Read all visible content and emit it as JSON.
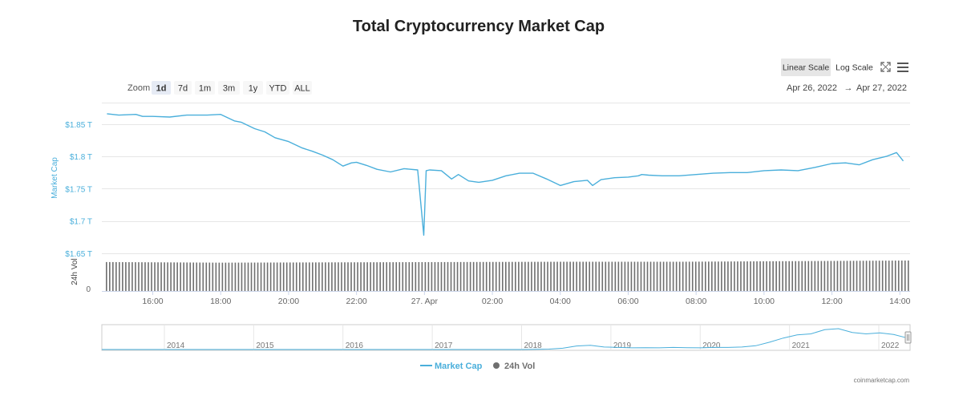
{
  "colors": {
    "accent": "#4aafdb",
    "volume": "#6f6f6f",
    "button_active_bg": "#e6ebf5",
    "scale_active_bg": "#e6e6e6",
    "grid": "#e6e6e6",
    "axis_text": "#666666",
    "price_axis_text": "#4aafdb"
  },
  "chart_data": {
    "type": "line",
    "title": "Total Cryptocurrency Market Cap",
    "zoom_label": "Zoom",
    "zoom_buttons": [
      {
        "label": "1d",
        "active": true
      },
      {
        "label": "7d",
        "active": false
      },
      {
        "label": "1m",
        "active": false
      },
      {
        "label": "3m",
        "active": false
      },
      {
        "label": "1y",
        "active": false
      },
      {
        "label": "YTD",
        "active": false
      },
      {
        "label": "ALL",
        "active": false
      }
    ],
    "scale_buttons": [
      {
        "label": "Linear Scale",
        "active": true
      },
      {
        "label": "Log Scale",
        "active": false
      }
    ],
    "icons": [
      "fullscreen-icon",
      "menu-icon"
    ],
    "date_range": {
      "from": "Apr 26, 2022",
      "arrow": "→",
      "to": "Apr 27, 2022"
    },
    "ylabel": "Market Cap",
    "y_ticks": [
      {
        "value": 1.85,
        "label": "$1.85 T"
      },
      {
        "value": 1.8,
        "label": "$1.8 T"
      },
      {
        "value": 1.75,
        "label": "$1.75 T"
      },
      {
        "value": 1.7,
        "label": "$1.7 T"
      },
      {
        "value": 1.65,
        "label": "$1.65 T"
      }
    ],
    "ylim": [
      1.65,
      1.8833
    ],
    "volume_axis": {
      "label": "24h Vol",
      "zero_label": "0"
    },
    "x_range_hours": [
      14.5,
      38.3
    ],
    "x_ticks": [
      {
        "hour": 16,
        "label": "16:00"
      },
      {
        "hour": 18,
        "label": "18:00"
      },
      {
        "hour": 20,
        "label": "20:00"
      },
      {
        "hour": 22,
        "label": "22:00"
      },
      {
        "hour": 24,
        "label": "27. Apr"
      },
      {
        "hour": 26,
        "label": "02:00"
      },
      {
        "hour": 28,
        "label": "04:00"
      },
      {
        "hour": 30,
        "label": "06:00"
      },
      {
        "hour": 32,
        "label": "08:00"
      },
      {
        "hour": 34,
        "label": "10:00"
      },
      {
        "hour": 36,
        "label": "12:00"
      },
      {
        "hour": 38,
        "label": "14:00"
      }
    ],
    "series": [
      {
        "name": "Market Cap",
        "x_hours": [
          14.65,
          15.0,
          15.5,
          15.7,
          16.0,
          16.5,
          17.0,
          17.3,
          17.6,
          18.0,
          18.4,
          18.6,
          19.0,
          19.3,
          19.6,
          20.0,
          20.4,
          20.7,
          21.0,
          21.3,
          21.6,
          21.85,
          22.0,
          22.3,
          22.6,
          23.0,
          23.4,
          23.8,
          23.98,
          24.05,
          24.15,
          24.5,
          24.8,
          25.0,
          25.3,
          25.6,
          26.0,
          26.4,
          26.8,
          27.2,
          27.6,
          28.0,
          28.4,
          28.8,
          28.95,
          29.2,
          29.6,
          30.0,
          30.3,
          30.4,
          30.6,
          31.0,
          31.5,
          32.0,
          32.5,
          33.0,
          33.5,
          34.0,
          34.5,
          35.0,
          35.5,
          36.0,
          36.4,
          36.8,
          37.2,
          37.6,
          37.9,
          38.1
        ],
        "values": [
          1.866,
          1.864,
          1.865,
          1.862,
          1.862,
          1.861,
          1.864,
          1.864,
          1.864,
          1.865,
          1.855,
          1.853,
          1.843,
          1.838,
          1.829,
          1.823,
          1.813,
          1.808,
          1.802,
          1.795,
          1.785,
          1.79,
          1.791,
          1.786,
          1.78,
          1.776,
          1.781,
          1.779,
          1.678,
          1.778,
          1.779,
          1.778,
          1.765,
          1.772,
          1.762,
          1.76,
          1.763,
          1.77,
          1.774,
          1.774,
          1.765,
          1.755,
          1.761,
          1.763,
          1.755,
          1.764,
          1.767,
          1.768,
          1.77,
          1.772,
          1.771,
          1.77,
          1.77,
          1.772,
          1.774,
          1.775,
          1.775,
          1.778,
          1.779,
          1.778,
          1.783,
          1.789,
          1.79,
          1.787,
          1.795,
          1.8,
          1.806,
          1.793
        ]
      },
      {
        "name": "24h Vol",
        "type": "column",
        "bar_count": 250,
        "relative_heights": [
          0.95,
          0.93,
          0.94,
          0.95,
          0.96,
          0.96,
          0.98,
          1.0
        ]
      }
    ],
    "navigator": {
      "year_labels": [
        "2014",
        "2015",
        "2016",
        "2017",
        "2018",
        "2019",
        "2020",
        "2021",
        "2022"
      ],
      "year_positions": [
        2014,
        2015,
        2016,
        2017,
        2018,
        2019,
        2020,
        2021,
        2022
      ],
      "x_range_years": [
        2013.3,
        2022.35
      ],
      "history_values": [
        0,
        0,
        0,
        0,
        0,
        0,
        0,
        0,
        0,
        0,
        0,
        0,
        0.01,
        0.02,
        0.06,
        0.17,
        0.2,
        0.12,
        0.1,
        0.08,
        0.09,
        0.08,
        0.1,
        0.09,
        0.08,
        0.1,
        0.1,
        0.12,
        0.18,
        0.35,
        0.55,
        0.7,
        0.75,
        0.95,
        1.0,
        0.82,
        0.75,
        0.8,
        0.72,
        0.55
      ]
    },
    "legend": [
      {
        "name": "Market Cap",
        "marker": "line"
      },
      {
        "name": "24h Vol",
        "marker": "dot"
      }
    ],
    "credit": "coinmarketcap.com"
  }
}
